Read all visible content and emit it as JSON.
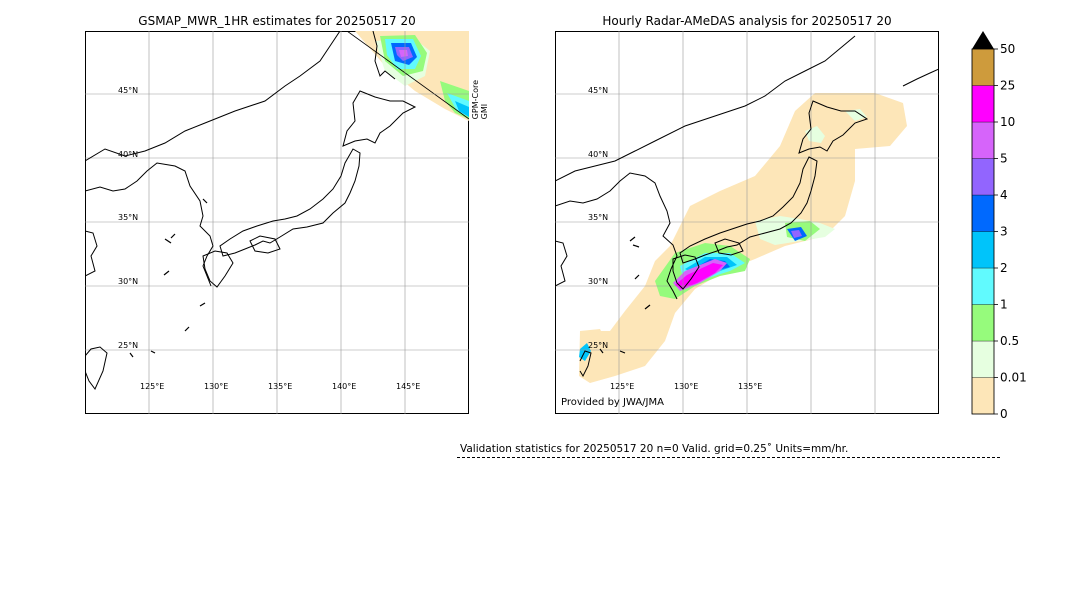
{
  "maps": {
    "left": {
      "title": "GSMAP_MWR_1HR estimates for 20250517 20",
      "sensor_lines": [
        "GPM-Core",
        "GMI"
      ]
    },
    "right": {
      "title": "Hourly Radar-AMeDAS analysis for 20250517 20",
      "credit": "Provided by JWA/JMA"
    }
  },
  "lat_labels": [
    "45°N",
    "40°N",
    "35°N",
    "30°N",
    "25°N"
  ],
  "lon_labels": [
    "125°E",
    "130°E",
    "135°E",
    "140°E",
    "145°E"
  ],
  "colorbar": {
    "units": "mm/hr",
    "levels": [
      "0",
      "0.01",
      "0.5",
      "1",
      "2",
      "3",
      "4",
      "5",
      "10",
      "25",
      "50"
    ],
    "colors": [
      "#fde6b8",
      "#e6ffe0",
      "#96fb7c",
      "#61fafe",
      "#00c4fa",
      "#0069fe",
      "#9265fe",
      "#d664fa",
      "#ff00ff",
      "#ce9b3c"
    ],
    "extend_color": "#000000"
  },
  "stats": {
    "text": "Validation statistics for 20250517 20  n=0 Valid. grid=0.25˚ Units=mm/hr."
  }
}
